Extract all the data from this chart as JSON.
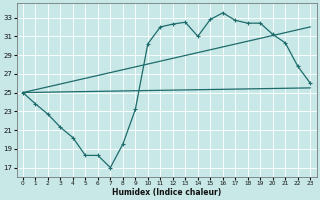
{
  "xlabel": "Humidex (Indice chaleur)",
  "background_color": "#c8e8e8",
  "line_color": "#1e6b6b",
  "grid_color": "#ffffff",
  "xlim": [
    -0.5,
    23.5
  ],
  "ylim": [
    16,
    34.5
  ],
  "yticks": [
    17,
    19,
    21,
    23,
    25,
    27,
    29,
    31,
    33
  ],
  "xticks": [
    0,
    1,
    2,
    3,
    4,
    5,
    6,
    7,
    8,
    9,
    10,
    11,
    12,
    13,
    14,
    15,
    16,
    17,
    18,
    19,
    20,
    21,
    22,
    23
  ],
  "line1_x": [
    0,
    1,
    2,
    3,
    4,
    5,
    6,
    7,
    8,
    9,
    10,
    11,
    12,
    13,
    14,
    15,
    16,
    17,
    18,
    19,
    20,
    21,
    22,
    23
  ],
  "line1_y": [
    25.0,
    23.8,
    22.7,
    21.3,
    20.2,
    18.3,
    18.3,
    17.0,
    19.5,
    23.2,
    30.2,
    32.0,
    32.3,
    32.5,
    31.0,
    32.8,
    33.5,
    32.7,
    32.4,
    32.4,
    31.2,
    30.3,
    27.8,
    26.0
  ],
  "line2_x": [
    0,
    23
  ],
  "line2_y": [
    25.0,
    32.0
  ],
  "line3_x": [
    0,
    23
  ],
  "line3_y": [
    25.0,
    25.5
  ],
  "figsize": [
    3.2,
    2.0
  ],
  "dpi": 100
}
